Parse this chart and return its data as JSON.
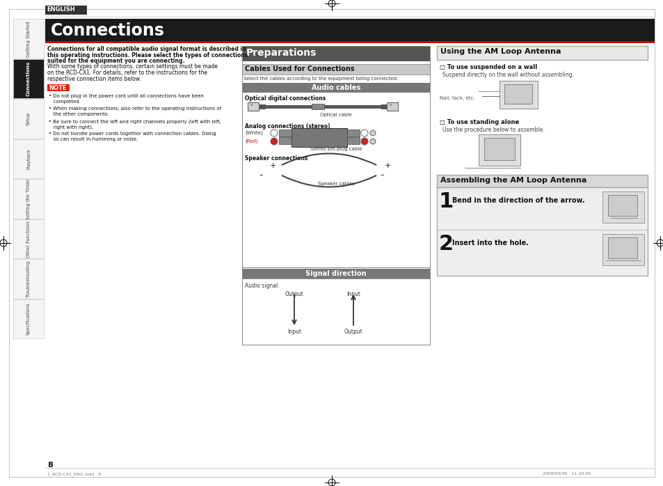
{
  "page_bg": "#ffffff",
  "english_label": "ENGLISH",
  "title": "Connections",
  "title_bg": "#1a1a1a",
  "title_color": "#ffffff",
  "sidebar_tabs": [
    "Getting Started",
    "Connections",
    "Setup",
    "Playback",
    "Setting the Timer",
    "Other Functions",
    "Troubleshooting",
    "Specifications"
  ],
  "active_tab": "Connections",
  "body_text_bold": [
    "Connections for all compatible audio signal format is described in",
    "this operating instructions. Please select the types of connections",
    "suited for the equipment you are connecting."
  ],
  "body_text_normal": [
    "With some types of connections, certain settings must be made",
    "on the RCD-CX1. For details, refer to the instructions for the",
    "respective connection items below."
  ],
  "note_label": "NOTE",
  "note_bullets": [
    "• Do not plug in the power cord until all connections have been\n   completed.",
    "• When making connections, also refer to the operating instructions of\n   the other components.",
    "• Be sure to connect the left and right channels properly (left with left,\n   right with right).",
    "• Do not bundle power cords together with connection cables. Doing\n   so can result in humming or noise."
  ],
  "prep_title": "Preparations",
  "prep_title_color": "#ffffff",
  "prep_title_bg": "#555555",
  "cables_section_title": "Cables Used for Connections",
  "cables_section_bg": "#cccccc",
  "cables_desc": "Select the cables according to the equipment being connected.",
  "audio_cables_header": "Audio cables",
  "audio_cables_header_bg": "#777777",
  "audio_cables_header_color": "#ffffff",
  "optical_label": "Optical digital connections",
  "optical_cable_label": "Optical cable",
  "analog_label": "Analog connections (stereo)",
  "white_label": "(White)",
  "red_label": "(Red)",
  "analog_cable_label": "Stereo pin-plug cable",
  "speaker_label": "Speaker connections",
  "speaker_cable_label": "Speaker cables",
  "signal_dir_header": "Signal direction",
  "signal_dir_header_bg": "#777777",
  "signal_dir_header_color": "#ffffff",
  "signal_audio_label": "Audio signal:",
  "signal_output_label1": "Output",
  "signal_input_label1": "Input",
  "signal_input_label2": "Input",
  "signal_output_label2": "Output",
  "am_loop_title": "Using the AM Loop Antenna",
  "am_loop_bg": "#e8e8e8",
  "am_loop_border": "#aaaaaa",
  "wall_label": "□ To use suspended on a wall",
  "wall_desc": "Suspend directly on the wall without assembling.",
  "nail_label": "Nail, tack, etc.",
  "standing_label": "□ To use standing alone",
  "standing_desc": "Use the procedure below to assemble.",
  "assembling_title": "Assembling the AM Loop Antenna",
  "assembling_bg": "#d8d8d8",
  "assembling_border": "#aaaaaa",
  "step1_num": "1",
  "step1_text": "Bend in the direction of the arrow.",
  "step2_num": "2",
  "step2_text": "Insert into the hole.",
  "page_num": "8",
  "footer_left": "1_RCD-CX1_ENG.indd   8",
  "footer_right": "2008/05/30   11:20:09"
}
